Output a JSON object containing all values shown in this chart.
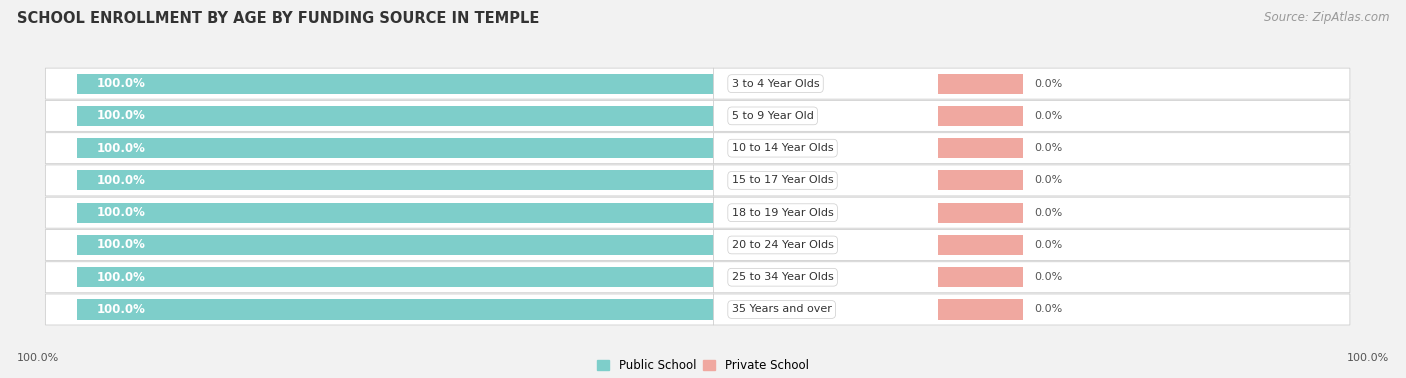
{
  "title": "SCHOOL ENROLLMENT BY AGE BY FUNDING SOURCE IN TEMPLE",
  "source": "Source: ZipAtlas.com",
  "categories": [
    "3 to 4 Year Olds",
    "5 to 9 Year Old",
    "10 to 14 Year Olds",
    "15 to 17 Year Olds",
    "18 to 19 Year Olds",
    "20 to 24 Year Olds",
    "25 to 34 Year Olds",
    "35 Years and over"
  ],
  "public_values": [
    100.0,
    100.0,
    100.0,
    100.0,
    100.0,
    100.0,
    100.0,
    100.0
  ],
  "private_values": [
    0.0,
    0.0,
    0.0,
    0.0,
    0.0,
    0.0,
    0.0,
    0.0
  ],
  "public_color": "#7ECECA",
  "private_color": "#F0A8A0",
  "bg_color": "#f2f2f2",
  "row_bg_color": "#ffffff",
  "row_edge_color": "#d0d0d0",
  "pub_bar_max": 100.0,
  "priv_bar_max": 100.0,
  "bar_height": 0.62,
  "title_fontsize": 10.5,
  "source_fontsize": 8.5,
  "label_fontsize": 8.5,
  "value_fontsize": 8,
  "cat_fontsize": 8,
  "legend_fontsize": 8.5,
  "pub_label_color": "#ffffff",
  "value_color": "#555555",
  "cat_label_color": "#333333",
  "bottom_tick_left": "100.0%",
  "bottom_tick_right": "100.0%"
}
